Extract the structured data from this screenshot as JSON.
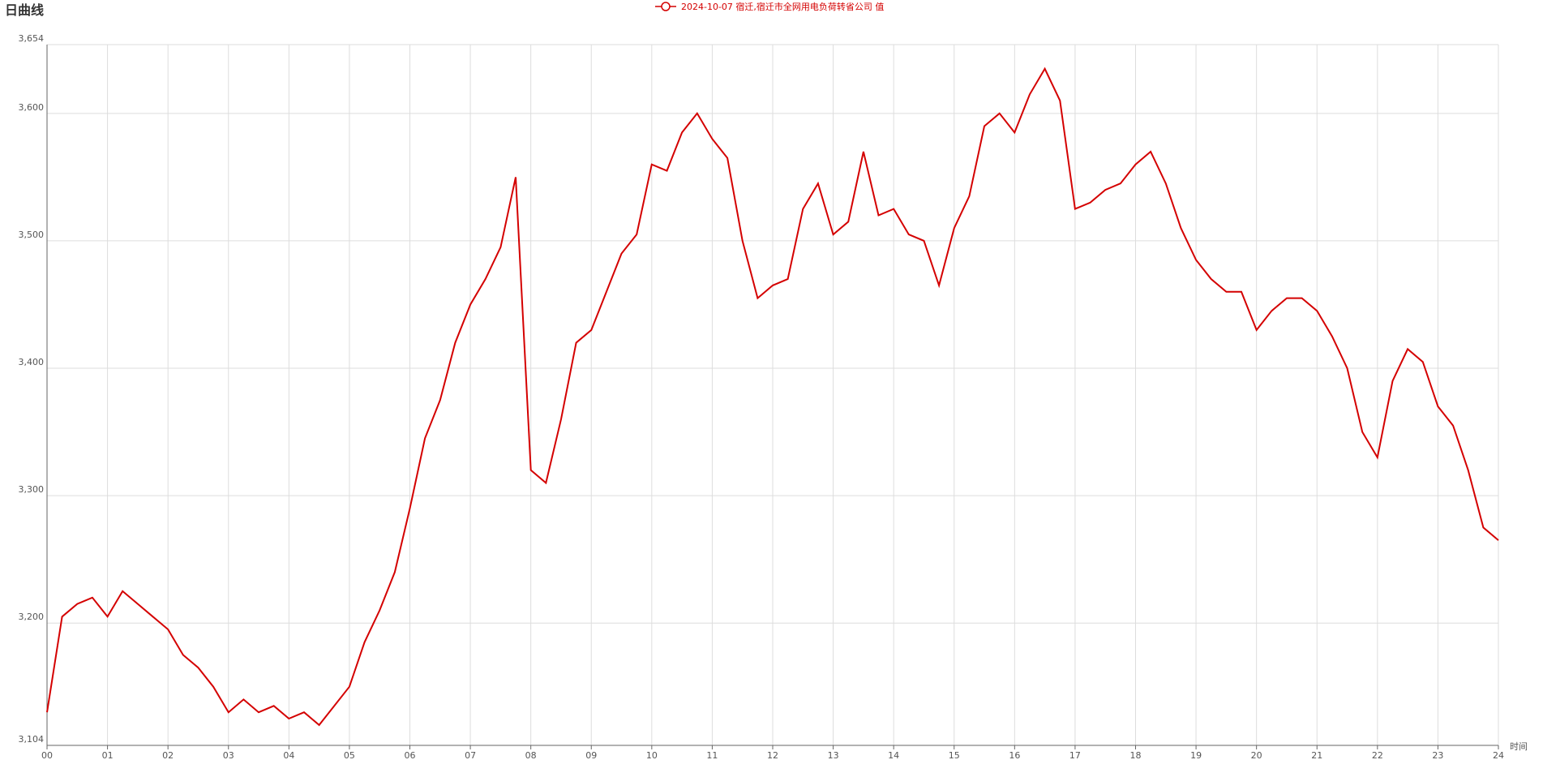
{
  "chart_data": {
    "type": "line",
    "title": "日曲线",
    "x_label": "时间",
    "x": [
      0,
      0.25,
      0.5,
      0.75,
      1,
      1.25,
      1.5,
      1.75,
      2,
      2.25,
      2.5,
      2.75,
      3,
      3.25,
      3.5,
      3.75,
      4,
      4.25,
      4.5,
      4.75,
      5,
      5.25,
      5.5,
      5.75,
      6,
      6.25,
      6.5,
      6.75,
      7,
      7.25,
      7.5,
      7.75,
      8,
      8.25,
      8.5,
      8.75,
      9,
      9.25,
      9.5,
      9.75,
      10,
      10.25,
      10.5,
      10.75,
      11,
      11.25,
      11.5,
      11.75,
      12,
      12.25,
      12.5,
      12.75,
      13,
      13.25,
      13.5,
      13.75,
      14,
      14.25,
      14.5,
      14.75,
      15,
      15.25,
      15.5,
      15.75,
      16,
      16.25,
      16.5,
      16.75,
      17,
      17.25,
      17.5,
      17.75,
      18,
      18.25,
      18.5,
      18.75,
      19,
      19.25,
      19.5,
      19.75,
      20,
      20.25,
      20.5,
      20.75,
      21,
      21.25,
      21.5,
      21.75,
      22,
      22.25,
      22.5,
      22.75,
      23,
      23.25,
      23.5,
      23.75,
      24
    ],
    "series": [
      {
        "name": "2024-10-07 宿迁,宿迁市全网用电负荷转省公司 值",
        "color": "#d40000",
        "values": [
          3130,
          3205,
          3215,
          3220,
          3205,
          3225,
          3215,
          3205,
          3195,
          3175,
          3165,
          3150,
          3130,
          3140,
          3130,
          3135,
          3125,
          3130,
          3120,
          3135,
          3150,
          3185,
          3210,
          3240,
          3290,
          3345,
          3375,
          3420,
          3450,
          3470,
          3495,
          3550,
          3320,
          3310,
          3360,
          3420,
          3430,
          3460,
          3490,
          3505,
          3560,
          3555,
          3585,
          3600,
          3580,
          3565,
          3500,
          3455,
          3465,
          3470,
          3525,
          3545,
          3505,
          3515,
          3570,
          3520,
          3525,
          3505,
          3500,
          3465,
          3510,
          3535,
          3590,
          3600,
          3585,
          3615,
          3635,
          3610,
          3525,
          3530,
          3540,
          3545,
          3560,
          3570,
          3545,
          3510,
          3485,
          3470,
          3460,
          3460,
          3430,
          3445,
          3455,
          3455,
          3445,
          3425,
          3400,
          3350,
          3330,
          3390,
          3415,
          3405,
          3370,
          3355,
          3320,
          3275,
          3265
        ]
      }
    ],
    "xlim": [
      0,
      24
    ],
    "xticks": [
      {
        "value": 0,
        "label": "00"
      },
      {
        "value": 1,
        "label": "01"
      },
      {
        "value": 2,
        "label": "02"
      },
      {
        "value": 3,
        "label": "03"
      },
      {
        "value": 4,
        "label": "04"
      },
      {
        "value": 5,
        "label": "05"
      },
      {
        "value": 6,
        "label": "06"
      },
      {
        "value": 7,
        "label": "07"
      },
      {
        "value": 8,
        "label": "08"
      },
      {
        "value": 9,
        "label": "09"
      },
      {
        "value": 10,
        "label": "10"
      },
      {
        "value": 11,
        "label": "11"
      },
      {
        "value": 12,
        "label": "12"
      },
      {
        "value": 13,
        "label": "13"
      },
      {
        "value": 14,
        "label": "14"
      },
      {
        "value": 15,
        "label": "15"
      },
      {
        "value": 16,
        "label": "16"
      },
      {
        "value": 17,
        "label": "17"
      },
      {
        "value": 18,
        "label": "18"
      },
      {
        "value": 19,
        "label": "19"
      },
      {
        "value": 20,
        "label": "20"
      },
      {
        "value": 21,
        "label": "21"
      },
      {
        "value": 22,
        "label": "22"
      },
      {
        "value": 23,
        "label": "23"
      },
      {
        "value": 24,
        "label": "24"
      }
    ],
    "ylim": [
      3104,
      3654
    ],
    "yticks": [
      {
        "value": 3104,
        "label": "3,104"
      },
      {
        "value": 3200,
        "label": "3,200"
      },
      {
        "value": 3300,
        "label": "3,300"
      },
      {
        "value": 3400,
        "label": "3,400"
      },
      {
        "value": 3500,
        "label": "3,500"
      },
      {
        "value": 3600,
        "label": "3,600"
      },
      {
        "value": 3654,
        "label": "3,654"
      }
    ],
    "grid": true
  }
}
